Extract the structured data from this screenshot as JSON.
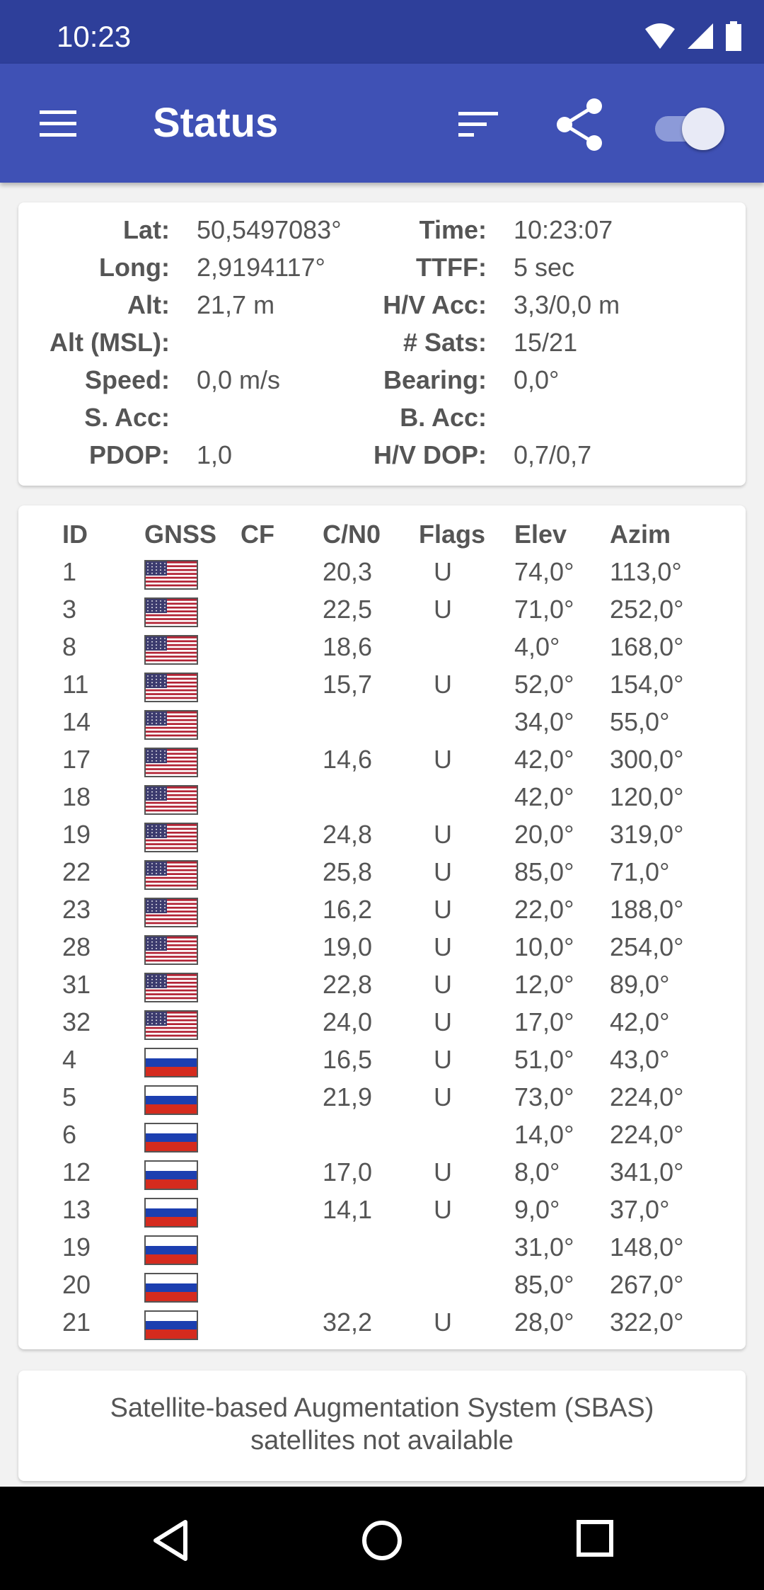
{
  "status_bar": {
    "time": "10:23"
  },
  "app_bar": {
    "title": "Status"
  },
  "location": {
    "rows": [
      {
        "label": "Lat:",
        "value": "50,5497083°",
        "label2": "Time:",
        "value2": "10:23:07"
      },
      {
        "label": "Long:",
        "value": "2,9194117°",
        "label2": "TTFF:",
        "value2": "5 sec"
      },
      {
        "label": "Alt:",
        "value": "21,7 m",
        "label2": "H/V Acc:",
        "value2": "3,3/0,0 m"
      },
      {
        "label": "Alt (MSL):",
        "value": "",
        "label2": "# Sats:",
        "value2": "15/21"
      },
      {
        "label": "Speed:",
        "value": "0,0 m/s",
        "label2": "Bearing:",
        "value2": "0,0°"
      },
      {
        "label": "S. Acc:",
        "value": "",
        "label2": "B. Acc:",
        "value2": ""
      },
      {
        "label": "PDOP:",
        "value": "1,0",
        "label2": "H/V DOP:",
        "value2": "0,7/0,7"
      }
    ]
  },
  "satellites": {
    "headers": [
      "ID",
      "GNSS",
      "CF",
      "C/N0",
      "Flags",
      "Elev",
      "Azim"
    ],
    "rows": [
      {
        "id": "1",
        "gnss": "us",
        "cf": "",
        "cn0": "20,3",
        "flags": "U",
        "elev": "74,0°",
        "azim": "113,0°"
      },
      {
        "id": "3",
        "gnss": "us",
        "cf": "",
        "cn0": "22,5",
        "flags": "U",
        "elev": "71,0°",
        "azim": "252,0°"
      },
      {
        "id": "8",
        "gnss": "us",
        "cf": "",
        "cn0": "18,6",
        "flags": "",
        "elev": "4,0°",
        "azim": "168,0°"
      },
      {
        "id": "11",
        "gnss": "us",
        "cf": "",
        "cn0": "15,7",
        "flags": "U",
        "elev": "52,0°",
        "azim": "154,0°"
      },
      {
        "id": "14",
        "gnss": "us",
        "cf": "",
        "cn0": "",
        "flags": "",
        "elev": "34,0°",
        "azim": "55,0°"
      },
      {
        "id": "17",
        "gnss": "us",
        "cf": "",
        "cn0": "14,6",
        "flags": "U",
        "elev": "42,0°",
        "azim": "300,0°"
      },
      {
        "id": "18",
        "gnss": "us",
        "cf": "",
        "cn0": "",
        "flags": "",
        "elev": "42,0°",
        "azim": "120,0°"
      },
      {
        "id": "19",
        "gnss": "us",
        "cf": "",
        "cn0": "24,8",
        "flags": "U",
        "elev": "20,0°",
        "azim": "319,0°"
      },
      {
        "id": "22",
        "gnss": "us",
        "cf": "",
        "cn0": "25,8",
        "flags": "U",
        "elev": "85,0°",
        "azim": "71,0°"
      },
      {
        "id": "23",
        "gnss": "us",
        "cf": "",
        "cn0": "16,2",
        "flags": "U",
        "elev": "22,0°",
        "azim": "188,0°"
      },
      {
        "id": "28",
        "gnss": "us",
        "cf": "",
        "cn0": "19,0",
        "flags": "U",
        "elev": "10,0°",
        "azim": "254,0°"
      },
      {
        "id": "31",
        "gnss": "us",
        "cf": "",
        "cn0": "22,8",
        "flags": "U",
        "elev": "12,0°",
        "azim": "89,0°"
      },
      {
        "id": "32",
        "gnss": "us",
        "cf": "",
        "cn0": "24,0",
        "flags": "U",
        "elev": "17,0°",
        "azim": "42,0°"
      },
      {
        "id": "4",
        "gnss": "ru",
        "cf": "",
        "cn0": "16,5",
        "flags": "U",
        "elev": "51,0°",
        "azim": "43,0°"
      },
      {
        "id": "5",
        "gnss": "ru",
        "cf": "",
        "cn0": "21,9",
        "flags": "U",
        "elev": "73,0°",
        "azim": "224,0°"
      },
      {
        "id": "6",
        "gnss": "ru",
        "cf": "",
        "cn0": "",
        "flags": "",
        "elev": "14,0°",
        "azim": "224,0°"
      },
      {
        "id": "12",
        "gnss": "ru",
        "cf": "",
        "cn0": "17,0",
        "flags": "U",
        "elev": "8,0°",
        "azim": "341,0°"
      },
      {
        "id": "13",
        "gnss": "ru",
        "cf": "",
        "cn0": "14,1",
        "flags": "U",
        "elev": "9,0°",
        "azim": "37,0°"
      },
      {
        "id": "19",
        "gnss": "ru",
        "cf": "",
        "cn0": "",
        "flags": "",
        "elev": "31,0°",
        "azim": "148,0°"
      },
      {
        "id": "20",
        "gnss": "ru",
        "cf": "",
        "cn0": "",
        "flags": "",
        "elev": "85,0°",
        "azim": "267,0°"
      },
      {
        "id": "21",
        "gnss": "ru",
        "cf": "",
        "cn0": "32,2",
        "flags": "U",
        "elev": "28,0°",
        "azim": "322,0°"
      }
    ]
  },
  "sbas": {
    "message_line1": "Satellite-based Augmentation System (SBAS)",
    "message_line2": "satellites not available"
  },
  "colors": {
    "primary": "#3f51b5",
    "primary_dark": "#2e3f9a",
    "text": "#555555"
  },
  "icons": [
    "wifi-icon",
    "signal-icon",
    "battery-icon",
    "menu-icon",
    "sort-icon",
    "share-icon",
    "back-icon",
    "home-icon",
    "recents-icon"
  ]
}
